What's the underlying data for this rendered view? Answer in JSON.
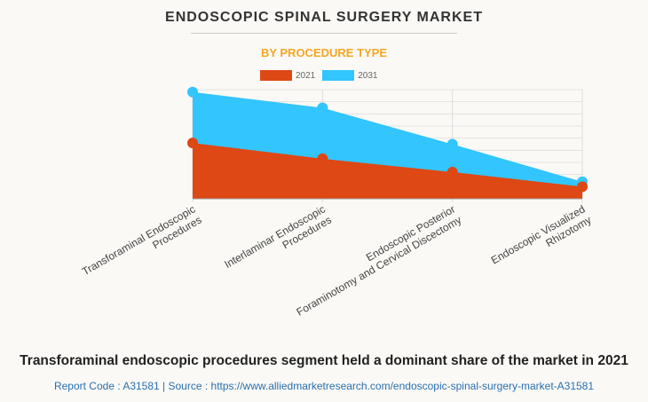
{
  "title": "ENDOSCOPIC SPINAL SURGERY MARKET",
  "subtitle": "BY PROCEDURE TYPE",
  "chart_data": {
    "type": "area",
    "categories": [
      "Transforaminal Endoscopic Procedures",
      "Interlaminar Endoscopic Procedures",
      "Endoscopic Posterior Foraminotomy and Cervical Discectomy",
      "Endoscopic Visualized Rhizotomy"
    ],
    "series": [
      {
        "name": "2021",
        "color": "#dd4814",
        "values": [
          4.6,
          3.3,
          2.2,
          1.0
        ]
      },
      {
        "name": "2031",
        "color": "#33c5fd",
        "values": [
          8.8,
          7.5,
          4.5,
          1.4
        ]
      }
    ],
    "ylim": [
      0,
      9
    ],
    "grid": true,
    "legend": "top"
  },
  "footer": "Transforaminal endoscopic procedures segment held a dominant share of the market in 2021",
  "source": "Report Code : A31581  |  Source : https://www.alliedmarketresearch.com/endoscopic-spinal-surgery-market-A31581"
}
